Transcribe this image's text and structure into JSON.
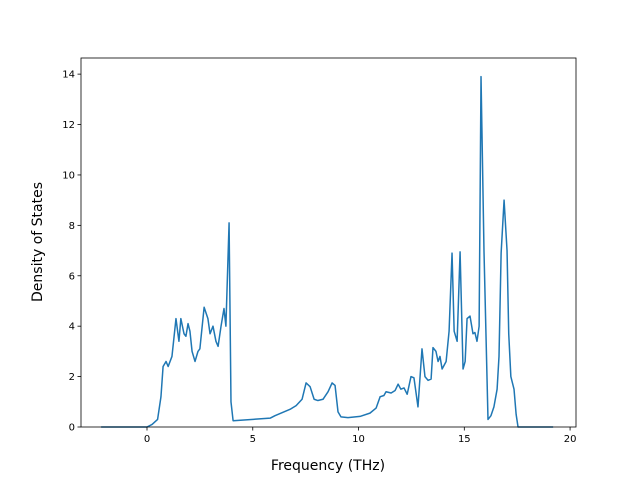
{
  "chart_data": {
    "type": "line",
    "xlabel": "Frequency (THz)",
    "ylabel": "Density of States",
    "xlim": [
      -3.12,
      20.28
    ],
    "ylim": [
      0,
      14.64
    ],
    "xticks": [
      0,
      5,
      10,
      15,
      20
    ],
    "yticks": [
      0,
      2,
      4,
      6,
      8,
      10,
      12,
      14
    ],
    "series": [
      {
        "color": "#1f77b4",
        "x": [
          -2.17,
          0,
          0.24,
          0.5,
          0.66,
          0.76,
          0.9,
          1.0,
          1.18,
          1.37,
          1.51,
          1.6,
          1.75,
          1.84,
          1.94,
          2.03,
          2.13,
          2.27,
          2.41,
          2.5,
          2.7,
          2.88,
          2.98,
          3.12,
          3.26,
          3.36,
          3.5,
          3.64,
          3.73,
          3.88,
          3.97,
          4.07,
          5.82,
          6.05,
          6.76,
          7.05,
          7.33,
          7.52,
          7.71,
          7.9,
          8.08,
          8.32,
          8.56,
          8.75,
          8.89,
          9.03,
          9.17,
          9.5,
          10.07,
          10.54,
          10.83,
          11.02,
          11.2,
          11.3,
          11.54,
          11.73,
          11.87,
          12.0,
          12.15,
          12.3,
          12.48,
          12.62,
          12.81,
          13.0,
          13.14,
          13.29,
          13.43,
          13.52,
          13.66,
          13.76,
          13.85,
          13.95,
          14.14,
          14.28,
          14.42,
          14.52,
          14.66,
          14.8,
          14.94,
          15.04,
          15.13,
          15.27,
          15.41,
          15.5,
          15.6,
          15.7,
          15.79,
          15.93,
          16.12,
          16.26,
          16.4,
          16.55,
          16.64,
          16.74,
          16.88,
          17.02,
          17.1,
          17.2,
          17.35,
          17.45,
          17.54,
          19.2
        ],
        "values": [
          0,
          0,
          0.1,
          0.3,
          1.2,
          2.4,
          2.6,
          2.4,
          2.8,
          4.3,
          3.4,
          4.3,
          3.7,
          3.6,
          4.1,
          3.8,
          3.0,
          2.6,
          3.0,
          3.1,
          4.75,
          4.3,
          3.7,
          4.0,
          3.4,
          3.2,
          4.0,
          4.7,
          4.0,
          8.1,
          1.0,
          0.25,
          0.35,
          0.45,
          0.7,
          0.85,
          1.1,
          1.75,
          1.6,
          1.1,
          1.05,
          1.1,
          1.4,
          1.75,
          1.65,
          0.6,
          0.4,
          0.37,
          0.42,
          0.55,
          0.75,
          1.2,
          1.25,
          1.4,
          1.35,
          1.45,
          1.7,
          1.5,
          1.55,
          1.3,
          2.0,
          1.95,
          0.8,
          3.1,
          2.0,
          1.85,
          1.9,
          3.15,
          3.0,
          2.6,
          2.8,
          2.3,
          2.6,
          3.8,
          6.9,
          3.8,
          3.4,
          6.95,
          2.3,
          2.6,
          4.3,
          4.4,
          3.7,
          3.75,
          3.4,
          4.0,
          13.9,
          7.0,
          0.3,
          0.45,
          0.8,
          1.5,
          2.8,
          6.9,
          9.0,
          7.0,
          3.7,
          2.0,
          1.5,
          0.5,
          0,
          0
        ]
      }
    ]
  }
}
